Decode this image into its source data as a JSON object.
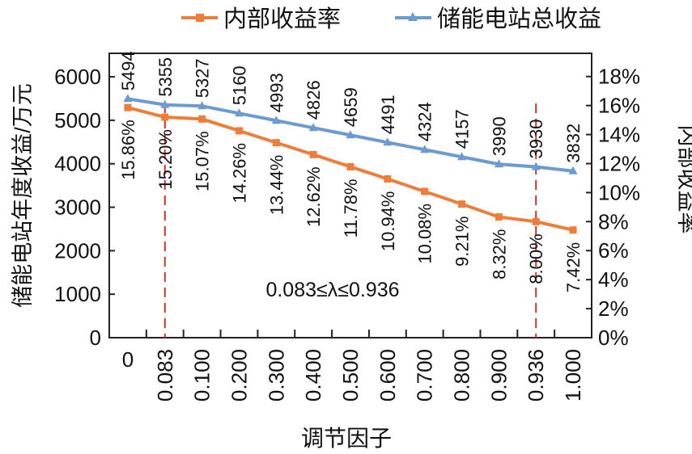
{
  "chart_data": {
    "type": "line",
    "categories": [
      "0",
      "0.083",
      "0.100",
      "0.200",
      "0.300",
      "0.400",
      "0.500",
      "0.600",
      "0.700",
      "0.800",
      "0.900",
      "0.936",
      "1.000"
    ],
    "xlabel": "调节因子",
    "ylabel_left": "储能电站年度收益/万元",
    "ylabel_right": "内部收益率",
    "ylim_left": [
      0,
      6540
    ],
    "ylim_right": [
      0,
      19.6
    ],
    "yticks_left": [
      0,
      1000,
      2000,
      3000,
      4000,
      5000,
      6000
    ],
    "yticks_left_labels": [
      "0",
      "1000",
      "2000",
      "3000",
      "4000",
      "5000",
      "6000"
    ],
    "yticks_right": [
      0,
      2,
      4,
      6,
      8,
      10,
      12,
      14,
      16,
      18
    ],
    "yticks_right_labels": [
      "0%",
      "2%",
      "4%",
      "6%",
      "8%",
      "10%",
      "12%",
      "14%",
      "16%",
      "18%"
    ],
    "legend_position": "top",
    "series": [
      {
        "name": "内部收益率",
        "axis": "right",
        "color": "#ee7d3a",
        "marker": "square",
        "values": [
          15.86,
          15.2,
          15.07,
          14.26,
          13.44,
          12.62,
          11.78,
          10.94,
          10.08,
          9.21,
          8.32,
          8.0,
          7.42
        ],
        "labels": [
          "15.86%",
          "15.20%",
          "15.07%",
          "14.26%",
          "13.44%",
          "12.62%",
          "11.78%",
          "10.94%",
          "10.08%",
          "9.21%",
          "8.32%",
          "8.00%",
          "7.42%"
        ]
      },
      {
        "name": "储能电站总收益",
        "axis": "left",
        "color": "#6a9bd1",
        "marker": "triangle",
        "values": [
          5494,
          5355,
          5327,
          5160,
          4993,
          4826,
          4659,
          4491,
          4324,
          4157,
          3990,
          3930,
          3832
        ],
        "labels": [
          "5494",
          "5355",
          "5327",
          "5160",
          "4993",
          "4826",
          "4659",
          "4491",
          "4324",
          "4157",
          "3990",
          "3930",
          "3832"
        ]
      }
    ],
    "reference_lines": {
      "x_categories": [
        "0.083",
        "0.936"
      ],
      "color": "#c0392b",
      "style": "dashed"
    },
    "annotation": "0.083≤λ≤0.936"
  }
}
